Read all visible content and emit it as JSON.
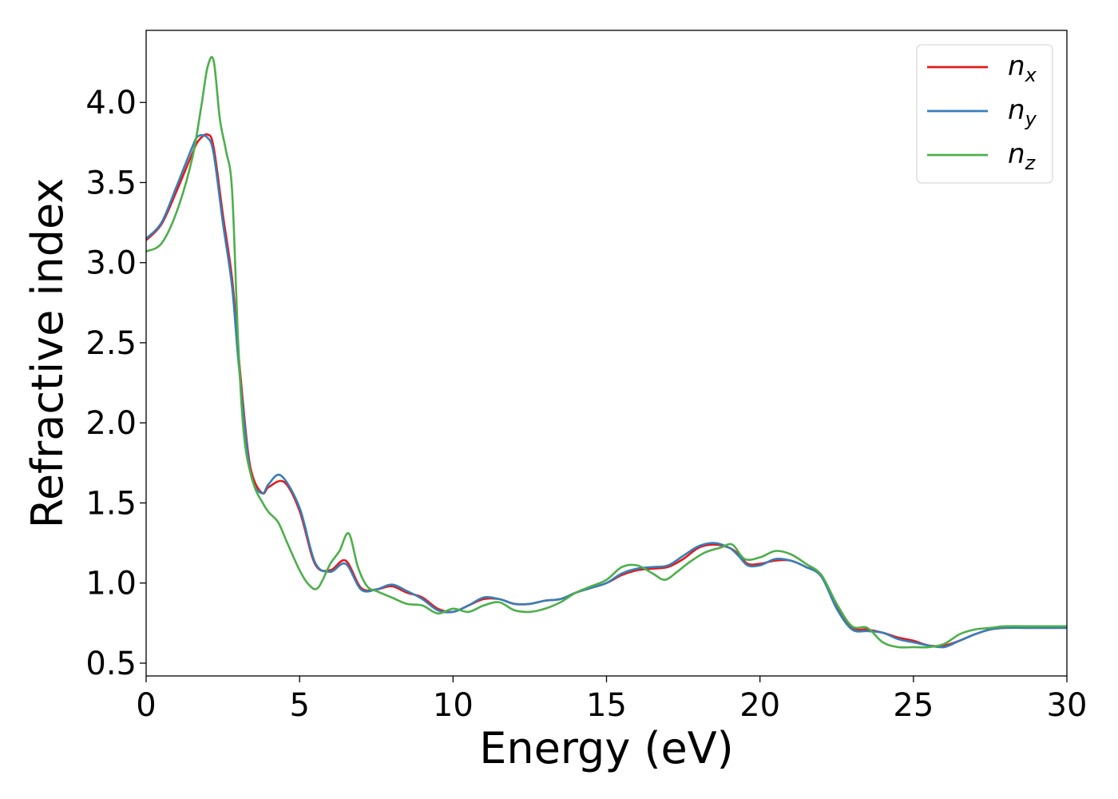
{
  "chart_data": {
    "type": "line",
    "xlabel": "Energy (eV)",
    "ylabel": "Refractive index",
    "xlim": [
      0,
      30
    ],
    "ylim": [
      0.42,
      4.45
    ],
    "xticks": [
      0,
      5,
      10,
      15,
      20,
      25,
      30
    ],
    "xtick_labels": [
      "0",
      "5",
      "10",
      "15",
      "20",
      "25",
      "30"
    ],
    "yticks": [
      0.5,
      1.0,
      1.5,
      2.0,
      2.5,
      3.0,
      3.5,
      4.0
    ],
    "ytick_labels": [
      "0.5",
      "1.0",
      "1.5",
      "2.0",
      "2.5",
      "3.0",
      "3.5",
      "4.0"
    ],
    "grid": false,
    "legend_position": "top-right",
    "series": [
      {
        "name": "n_x",
        "label_base": "n",
        "label_sub": "x",
        "color": "#e41a1c",
        "x": [
          0,
          0.5,
          1.0,
          1.5,
          1.7,
          2.0,
          2.2,
          2.5,
          2.8,
          3.0,
          3.3,
          3.5,
          3.8,
          4.0,
          4.5,
          5.0,
          5.5,
          6.0,
          6.5,
          7.0,
          7.5,
          8.0,
          8.5,
          9.0,
          9.5,
          10.0,
          10.5,
          11.0,
          11.5,
          12.0,
          12.5,
          13.0,
          13.5,
          14.0,
          14.5,
          15.0,
          15.5,
          16.0,
          16.5,
          17.0,
          17.5,
          18.0,
          18.5,
          19.0,
          19.3,
          19.6,
          20.0,
          20.5,
          21.0,
          21.5,
          22.0,
          22.5,
          23.0,
          23.5,
          24.0,
          24.5,
          25.0,
          25.5,
          26.0,
          26.5,
          27.0,
          27.5,
          28.0,
          29.0,
          30.0
        ],
        "y": [
          3.14,
          3.24,
          3.45,
          3.68,
          3.76,
          3.8,
          3.72,
          3.3,
          2.9,
          2.45,
          1.85,
          1.65,
          1.56,
          1.6,
          1.63,
          1.45,
          1.12,
          1.08,
          1.14,
          0.97,
          0.96,
          0.98,
          0.94,
          0.91,
          0.84,
          0.82,
          0.86,
          0.9,
          0.9,
          0.87,
          0.87,
          0.89,
          0.9,
          0.94,
          0.97,
          1.0,
          1.05,
          1.08,
          1.09,
          1.1,
          1.15,
          1.22,
          1.24,
          1.22,
          1.18,
          1.12,
          1.12,
          1.14,
          1.14,
          1.1,
          1.05,
          0.85,
          0.72,
          0.71,
          0.69,
          0.66,
          0.64,
          0.61,
          0.61,
          0.64,
          0.68,
          0.71,
          0.72,
          0.72,
          0.72
        ]
      },
      {
        "name": "n_y",
        "label_base": "n",
        "label_sub": "y",
        "color": "#377eb8",
        "x": [
          0,
          0.5,
          1.0,
          1.5,
          1.7,
          2.0,
          2.2,
          2.5,
          2.8,
          3.0,
          3.3,
          3.5,
          3.8,
          4.0,
          4.4,
          5.0,
          5.5,
          6.0,
          6.5,
          7.0,
          7.5,
          8.0,
          8.5,
          9.0,
          9.5,
          10.0,
          10.5,
          11.0,
          11.5,
          12.0,
          12.5,
          13.0,
          13.5,
          14.0,
          14.5,
          15.0,
          15.5,
          16.0,
          16.5,
          17.0,
          17.5,
          18.0,
          18.5,
          19.0,
          19.3,
          19.6,
          20.0,
          20.5,
          21.0,
          21.5,
          22.0,
          22.5,
          23.0,
          23.5,
          24.0,
          24.5,
          25.0,
          25.5,
          26.0,
          26.5,
          27.0,
          27.5,
          28.0,
          29.0,
          30.0
        ],
        "y": [
          3.15,
          3.25,
          3.48,
          3.72,
          3.79,
          3.78,
          3.68,
          3.25,
          2.85,
          2.4,
          1.82,
          1.62,
          1.56,
          1.62,
          1.67,
          1.47,
          1.13,
          1.07,
          1.12,
          0.96,
          0.96,
          0.99,
          0.95,
          0.9,
          0.83,
          0.82,
          0.86,
          0.91,
          0.9,
          0.87,
          0.87,
          0.89,
          0.9,
          0.94,
          0.97,
          1.0,
          1.06,
          1.09,
          1.1,
          1.11,
          1.17,
          1.23,
          1.25,
          1.22,
          1.17,
          1.11,
          1.11,
          1.15,
          1.14,
          1.1,
          1.04,
          0.84,
          0.71,
          0.7,
          0.69,
          0.65,
          0.63,
          0.61,
          0.6,
          0.64,
          0.68,
          0.71,
          0.72,
          0.72,
          0.72
        ]
      },
      {
        "name": "n_z",
        "label_base": "n",
        "label_sub": "z",
        "color": "#4daf4a",
        "x": [
          0,
          0.5,
          1.0,
          1.5,
          1.8,
          2.0,
          2.2,
          2.4,
          2.6,
          2.8,
          3.0,
          3.2,
          3.5,
          3.8,
          4.0,
          4.3,
          4.6,
          5.0,
          5.3,
          5.6,
          6.0,
          6.3,
          6.6,
          6.9,
          7.2,
          7.5,
          8.0,
          8.5,
          9.0,
          9.5,
          10.0,
          10.5,
          11.0,
          11.5,
          12.0,
          12.5,
          13.0,
          13.5,
          14.0,
          14.5,
          15.0,
          15.5,
          16.0,
          16.5,
          16.9,
          17.3,
          17.7,
          18.2,
          18.7,
          19.1,
          19.5,
          20.0,
          20.5,
          21.0,
          21.5,
          22.0,
          22.5,
          23.0,
          23.5,
          24.0,
          24.5,
          25.0,
          25.5,
          26.0,
          26.5,
          27.0,
          27.5,
          28.0,
          29.0,
          30.0
        ],
        "y": [
          3.07,
          3.12,
          3.32,
          3.65,
          3.98,
          4.22,
          4.26,
          3.9,
          3.7,
          3.45,
          2.5,
          1.9,
          1.62,
          1.5,
          1.44,
          1.38,
          1.25,
          1.08,
          0.99,
          0.97,
          1.12,
          1.2,
          1.31,
          1.1,
          0.98,
          0.95,
          0.91,
          0.87,
          0.86,
          0.81,
          0.84,
          0.82,
          0.86,
          0.88,
          0.83,
          0.82,
          0.84,
          0.88,
          0.94,
          0.98,
          1.02,
          1.1,
          1.11,
          1.06,
          1.02,
          1.07,
          1.13,
          1.19,
          1.22,
          1.24,
          1.15,
          1.16,
          1.2,
          1.18,
          1.12,
          1.05,
          0.87,
          0.73,
          0.72,
          0.63,
          0.6,
          0.6,
          0.6,
          0.62,
          0.68,
          0.71,
          0.72,
          0.73,
          0.73,
          0.73
        ]
      }
    ]
  }
}
